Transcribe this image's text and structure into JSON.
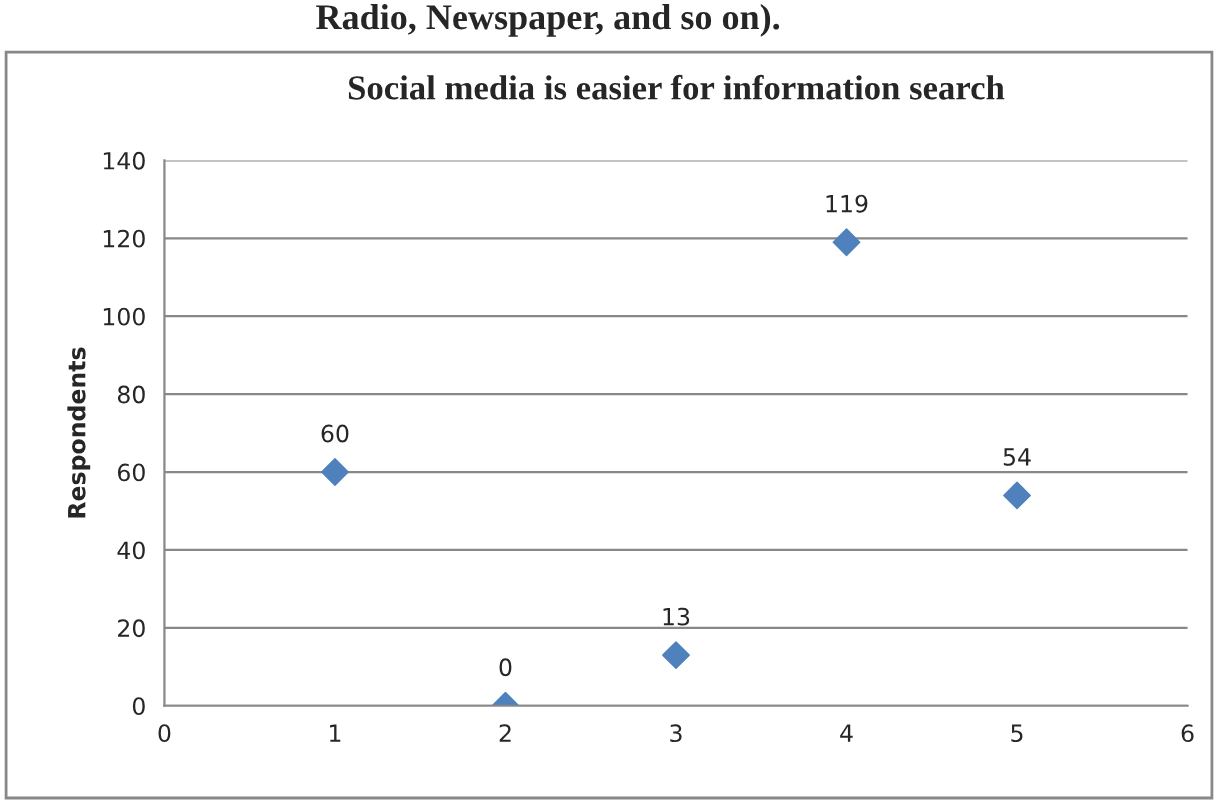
{
  "chart_data": {
    "type": "scatter",
    "title": "Social media is easier for information search",
    "annotations": [
      "Radio, Newspaper, and so on)."
    ],
    "ylabel": "Respondents",
    "x": [
      1,
      2,
      3,
      4,
      5
    ],
    "series": [
      {
        "color": "#4f81bd",
        "values": [
          60,
          0,
          13,
          119,
          54
        ]
      }
    ],
    "xlim": [
      0,
      6
    ],
    "xticks": [
      0,
      1,
      2,
      3,
      4,
      5,
      6
    ],
    "ylim": [
      0,
      140
    ],
    "yticks": [
      0,
      20,
      40,
      60,
      80,
      100,
      120,
      140
    ],
    "grid": "y",
    "marker": "diamond",
    "data_labels": true
  }
}
